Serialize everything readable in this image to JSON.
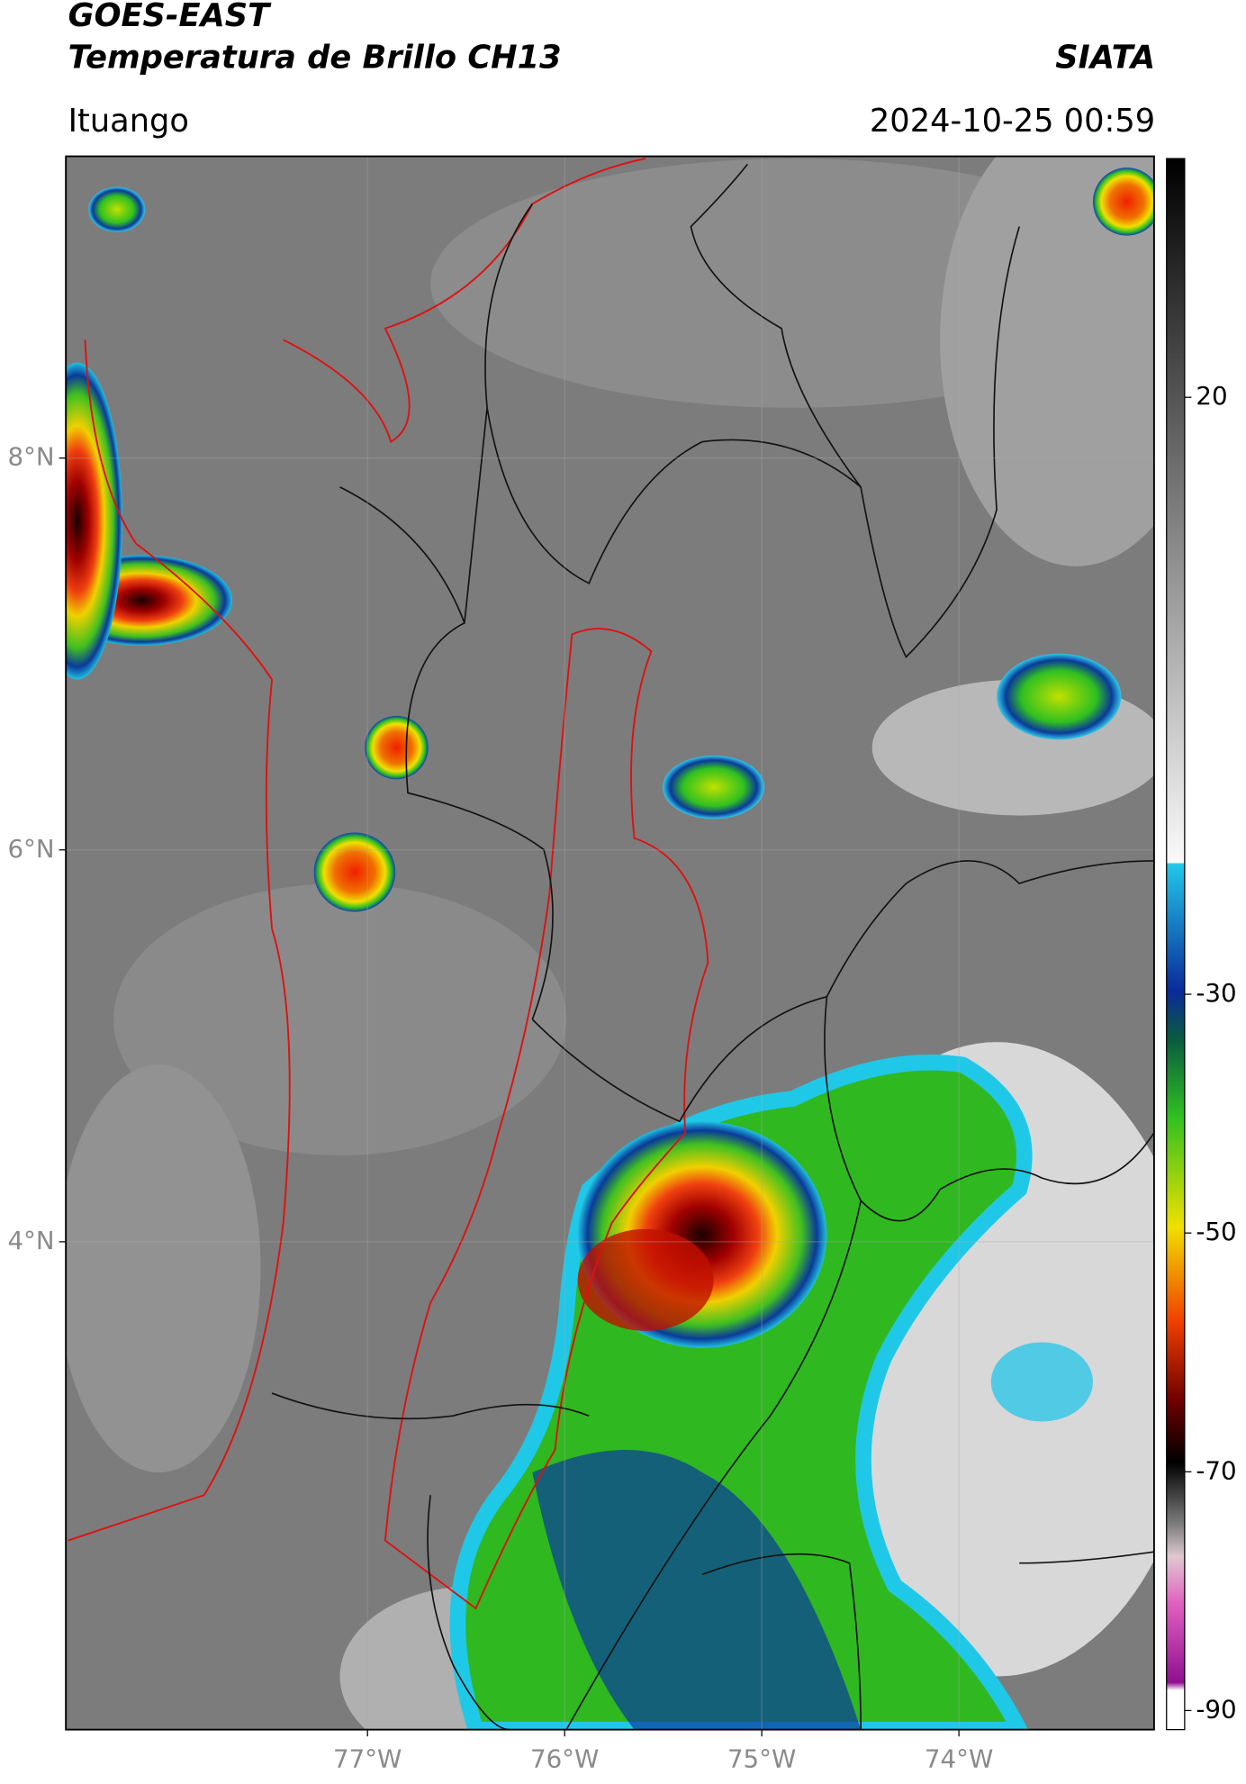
{
  "header": {
    "title": "GOES-EAST",
    "subtitle": "Temperatura de Brillo CH13",
    "source": "SIATA",
    "location": "Ituango",
    "datetime": "2024-10-25 00:59"
  },
  "map": {
    "xlim": [
      -78.53,
      -73.01
    ],
    "ylim": [
      1.51,
      9.54
    ],
    "xticks": [
      {
        "value": -77,
        "label": "77°W"
      },
      {
        "value": -76,
        "label": "76°W"
      },
      {
        "value": -75,
        "label": "75°W"
      },
      {
        "value": -74,
        "label": "74°W"
      }
    ],
    "yticks": [
      {
        "value": 8,
        "label": "8°N"
      },
      {
        "value": 6,
        "label": "6°N"
      },
      {
        "value": 4,
        "label": "4°N"
      }
    ]
  },
  "colorbar": {
    "lim": [
      -91.6,
      40
    ],
    "ticks": [
      20,
      -30,
      -50,
      -70,
      -90
    ]
  }
}
